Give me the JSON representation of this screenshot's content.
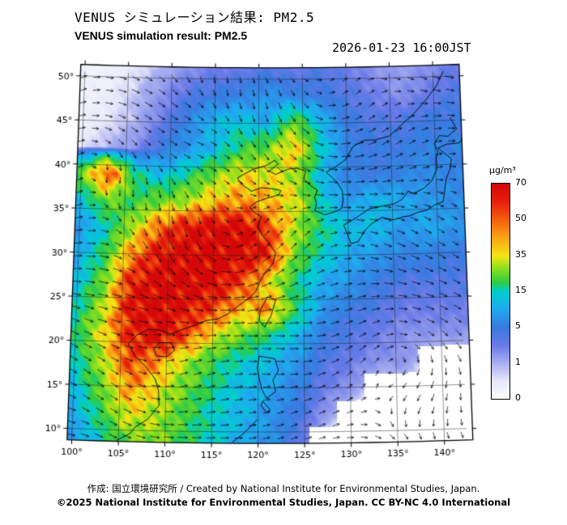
{
  "header": {
    "title_jp": "VENUS シミュレーション結果: PM2.5",
    "title_en": "VENUS simulation result: PM2.5",
    "timestamp": "2026-01-23 16:00JST"
  },
  "footer": {
    "credit_line": "作成: 国立環境研究所 / Created by National Institute for Environmental Studies, Japan.",
    "license_line": "©2025 National Institute for Environmental Studies, Japan. CC BY-NC 4.0 International"
  },
  "chart_data": {
    "type": "heatmap",
    "title": "VENUS simulation result: PM2.5",
    "variable": "PM2.5 surface concentration",
    "units": "µg/m³",
    "valid_time": "2026-01-23 16:00JST",
    "projection": "mild conic over East Asia",
    "axes": {
      "lon_ticks": [
        100,
        105,
        110,
        115,
        120,
        125,
        130,
        135,
        140
      ],
      "lon_tick_labels": [
        "100°",
        "105°",
        "110°",
        "115°",
        "120°",
        "125°",
        "130°",
        "135°",
        "140°"
      ],
      "lat_ticks": [
        10,
        15,
        20,
        25,
        30,
        35,
        40,
        45,
        50
      ],
      "lat_tick_labels": [
        "10°",
        "15°",
        "20°",
        "25°",
        "30°",
        "35°",
        "40°",
        "45°",
        "50°"
      ],
      "lon_range": [
        99.5,
        143.05
      ],
      "lat_range": [
        8.7,
        51.3
      ],
      "grid_on": true
    },
    "colorbar": {
      "label": "µg/m³",
      "levels": [
        0,
        1,
        5,
        15,
        35,
        50,
        70
      ],
      "stops": [
        {
          "v": 0,
          "c": "#ffffff"
        },
        {
          "v": 0.5,
          "c": "#e8e8fb"
        },
        {
          "v": 1,
          "c": "#aab0f0"
        },
        {
          "v": 3,
          "c": "#6a7ae8"
        },
        {
          "v": 5,
          "c": "#3a7ae0"
        },
        {
          "v": 10,
          "c": "#20aaf0"
        },
        {
          "v": 15,
          "c": "#00cfd0"
        },
        {
          "v": 20,
          "c": "#2ecc45"
        },
        {
          "v": 28,
          "c": "#8ee01e"
        },
        {
          "v": 35,
          "c": "#f5e614"
        },
        {
          "v": 43,
          "c": "#fa9f16"
        },
        {
          "v": 50,
          "c": "#f4600f"
        },
        {
          "v": 60,
          "c": "#e8200c"
        },
        {
          "v": 70,
          "c": "#d40808"
        }
      ]
    },
    "grid": {
      "lats": [
        51,
        48,
        45,
        42,
        39,
        36,
        33,
        30,
        27,
        24,
        21,
        18,
        15,
        12,
        9
      ],
      "lons": [
        100,
        103,
        106,
        109,
        112,
        115,
        118,
        121,
        124,
        127,
        130,
        133,
        136,
        139,
        142
      ],
      "values_ugm3": [
        [
          0.3,
          0.3,
          0.5,
          1,
          2,
          3,
          3,
          4,
          3,
          4,
          3,
          2,
          1.5,
          2,
          3
        ],
        [
          0.3,
          0.4,
          0.8,
          2,
          4,
          5,
          6,
          8,
          6,
          5,
          4,
          3,
          2,
          3,
          4
        ],
        [
          0.3,
          0.5,
          1,
          3,
          6,
          12,
          14,
          10,
          25,
          12,
          5,
          4,
          4,
          5,
          5
        ],
        [
          0.5,
          1,
          2,
          5,
          8,
          12,
          20,
          25,
          40,
          15,
          6,
          5,
          5,
          6,
          6
        ],
        [
          25,
          55,
          18,
          12,
          18,
          26,
          35,
          35,
          30,
          12,
          6,
          5,
          6,
          7,
          6
        ],
        [
          12,
          25,
          20,
          25,
          30,
          40,
          45,
          40,
          35,
          15,
          8,
          12,
          10,
          8,
          7
        ],
        [
          8,
          15,
          30,
          50,
          65,
          70,
          70,
          55,
          30,
          18,
          12,
          12,
          8,
          10,
          8
        ],
        [
          10,
          20,
          45,
          65,
          70,
          70,
          70,
          60,
          25,
          15,
          10,
          8,
          6,
          6,
          5
        ],
        [
          12,
          25,
          60,
          70,
          70,
          70,
          55,
          35,
          18,
          10,
          8,
          5,
          4,
          4,
          4
        ],
        [
          15,
          30,
          65,
          70,
          65,
          55,
          40,
          45,
          20,
          8,
          5,
          4,
          3,
          3,
          3
        ],
        [
          18,
          35,
          60,
          70,
          55,
          35,
          25,
          18,
          12,
          5,
          4,
          3,
          2,
          2,
          2
        ],
        [
          15,
          30,
          55,
          45,
          30,
          20,
          15,
          12,
          8,
          4,
          3,
          2,
          2,
          null,
          null
        ],
        [
          12,
          25,
          45,
          35,
          25,
          18,
          12,
          10,
          6,
          3,
          2,
          null,
          null,
          null,
          null
        ],
        [
          10,
          20,
          35,
          30,
          22,
          15,
          12,
          8,
          5,
          2,
          null,
          null,
          null,
          null,
          null
        ],
        [
          8,
          15,
          25,
          28,
          20,
          15,
          10,
          8,
          4,
          null,
          null,
          null,
          null,
          null,
          null
        ]
      ]
    },
    "wind_overlay": {
      "style": "arrows",
      "color": "#000000"
    },
    "coastlines": [
      [
        [
          104.8,
          8.8
        ],
        [
          106.2,
          9.6
        ],
        [
          106.8,
          10.4
        ],
        [
          108.1,
          11.3
        ],
        [
          109.3,
          12.9
        ],
        [
          109.2,
          14.6
        ],
        [
          108.8,
          15.9
        ],
        [
          107.8,
          17.2
        ],
        [
          106.6,
          18.4
        ],
        [
          105.8,
          19.8
        ],
        [
          106.7,
          20.8
        ],
        [
          108.0,
          21.5
        ],
        [
          109.4,
          21.4
        ],
        [
          110.4,
          21.0
        ],
        [
          111.8,
          21.6
        ],
        [
          113.2,
          22.1
        ],
        [
          114.3,
          22.6
        ],
        [
          115.6,
          22.8
        ],
        [
          116.7,
          23.4
        ],
        [
          117.8,
          24.3
        ],
        [
          118.9,
          25.1
        ],
        [
          119.7,
          25.9
        ],
        [
          120.1,
          26.9
        ],
        [
          120.7,
          28.0
        ],
        [
          121.6,
          29.1
        ],
        [
          121.9,
          30.3
        ],
        [
          121.2,
          31.4
        ],
        [
          120.5,
          32.2
        ],
        [
          119.9,
          33.3
        ],
        [
          120.3,
          34.4
        ],
        [
          119.5,
          34.9
        ],
        [
          119.0,
          35.5
        ],
        [
          119.8,
          36.1
        ],
        [
          120.9,
          36.5
        ],
        [
          122.3,
          36.9
        ],
        [
          122.5,
          37.4
        ],
        [
          121.4,
          37.6
        ],
        [
          120.3,
          37.7
        ],
        [
          119.2,
          37.3
        ],
        [
          118.2,
          38.0
        ],
        [
          117.6,
          38.8
        ],
        [
          118.3,
          39.2
        ],
        [
          119.4,
          39.8
        ],
        [
          120.8,
          40.2
        ],
        [
          121.8,
          40.8
        ],
        [
          122.2,
          40.4
        ],
        [
          121.2,
          39.6
        ],
        [
          121.9,
          39.2
        ],
        [
          123.3,
          39.8
        ],
        [
          124.3,
          39.9
        ],
        [
          125.3,
          39.6
        ]
      ],
      [
        [
          125.3,
          39.6
        ],
        [
          125.1,
          38.7
        ],
        [
          125.9,
          37.9
        ],
        [
          126.6,
          37.4
        ],
        [
          126.3,
          36.6
        ],
        [
          126.5,
          35.9
        ],
        [
          126.3,
          35.1
        ],
        [
          127.4,
          34.6
        ],
        [
          128.5,
          34.9
        ],
        [
          129.3,
          35.3
        ],
        [
          129.5,
          36.2
        ],
        [
          129.4,
          37.3
        ],
        [
          128.8,
          38.3
        ],
        [
          128.2,
          38.9
        ],
        [
          127.6,
          39.4
        ],
        [
          128.5,
          39.9
        ],
        [
          129.8,
          40.8
        ],
        [
          130.7,
          42.3
        ]
      ],
      [
        [
          130.7,
          42.3
        ],
        [
          132.0,
          43.0
        ],
        [
          133.2,
          43.0
        ],
        [
          134.8,
          43.4
        ],
        [
          136.2,
          44.6
        ],
        [
          137.8,
          46.0
        ],
        [
          139.2,
          47.5
        ],
        [
          140.4,
          49.0
        ],
        [
          141.2,
          50.6
        ]
      ],
      [
        [
          129.8,
          32.7
        ],
        [
          130.3,
          31.3
        ],
        [
          131.1,
          31.5
        ],
        [
          131.9,
          32.8
        ],
        [
          132.6,
          33.5
        ],
        [
          133.8,
          34.2
        ],
        [
          135.1,
          33.9
        ],
        [
          136.1,
          34.2
        ],
        [
          136.9,
          34.3
        ],
        [
          137.9,
          34.7
        ],
        [
          138.9,
          34.9
        ],
        [
          139.8,
          35.5
        ],
        [
          140.7,
          35.8
        ],
        [
          140.9,
          36.9
        ],
        [
          141.1,
          38.3
        ],
        [
          141.6,
          39.5
        ],
        [
          141.8,
          40.6
        ],
        [
          140.9,
          41.4
        ],
        [
          140.3,
          41.9
        ],
        [
          141.3,
          42.3
        ],
        [
          142.8,
          42.4
        ],
        [
          143.2,
          43.1
        ]
      ],
      [
        [
          129.8,
          32.7
        ],
        [
          129.5,
          33.4
        ],
        [
          130.4,
          33.9
        ],
        [
          131.2,
          34.4
        ],
        [
          132.4,
          35.2
        ],
        [
          133.9,
          35.5
        ],
        [
          135.2,
          35.7
        ],
        [
          136.1,
          36.2
        ],
        [
          136.8,
          37.1
        ],
        [
          137.4,
          36.8
        ],
        [
          138.6,
          37.4
        ],
        [
          139.5,
          38.2
        ],
        [
          140.1,
          39.5
        ],
        [
          140.1,
          40.8
        ],
        [
          140.3,
          41.5
        ],
        [
          139.9,
          42.4
        ],
        [
          140.5,
          43.3
        ],
        [
          141.5,
          43.2
        ],
        [
          142.5,
          44.0
        ],
        [
          141.8,
          45.3
        ]
      ],
      [
        [
          121.0,
          25.3
        ],
        [
          121.9,
          25.0
        ],
        [
          121.4,
          23.2
        ],
        [
          120.7,
          21.9
        ],
        [
          120.1,
          22.6
        ],
        [
          120.2,
          23.8
        ],
        [
          121.0,
          25.3
        ]
      ],
      [
        [
          109.2,
          20.0
        ],
        [
          110.5,
          20.0
        ],
        [
          110.9,
          19.2
        ],
        [
          110.0,
          18.4
        ],
        [
          108.9,
          18.5
        ],
        [
          108.6,
          19.3
        ],
        [
          109.2,
          20.0
        ]
      ],
      [
        [
          120.1,
          18.6
        ],
        [
          121.8,
          18.3
        ],
        [
          122.2,
          17.0
        ],
        [
          121.6,
          15.9
        ],
        [
          121.9,
          14.6
        ],
        [
          120.9,
          13.8
        ],
        [
          120.4,
          14.8
        ],
        [
          120.1,
          16.1
        ],
        [
          119.9,
          17.2
        ],
        [
          120.1,
          18.6
        ]
      ],
      [
        [
          117.2,
          8.8
        ],
        [
          118.4,
          9.8
        ],
        [
          119.2,
          10.6
        ],
        [
          119.9,
          11.4
        ]
      ],
      [
        [
          120.5,
          13.5
        ],
        [
          121.3,
          12.5
        ],
        [
          120.9,
          12.2
        ],
        [
          120.3,
          13.0
        ],
        [
          120.5,
          13.5
        ]
      ]
    ]
  }
}
